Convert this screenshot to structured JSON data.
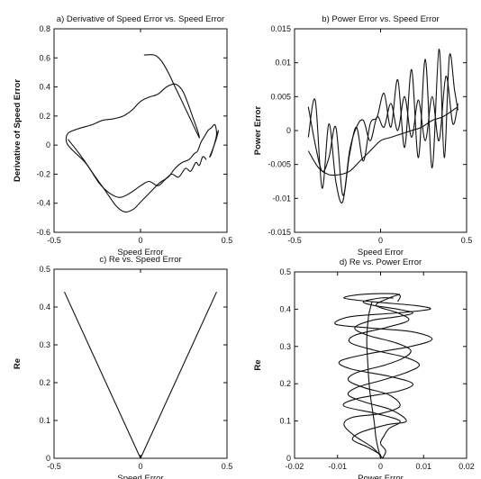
{
  "chart_data": [
    {
      "type": "line",
      "title": "a) Derivative of Speed Error vs. Speed Error",
      "xlabel": "Speed Error",
      "ylabel": "Derivative of Speed Error",
      "xlim": [
        -0.5,
        0.5
      ],
      "ylim": [
        -0.6,
        0.8
      ],
      "xticks": [
        "-0.5",
        "0",
        "0.5"
      ],
      "yticks": [
        "-0.6",
        "-0.4",
        "-0.2",
        "0",
        "0.2",
        "0.4",
        "0.6",
        "0.8"
      ],
      "grid": false,
      "series": [
        {
          "x": [
            0.02,
            0.08,
            0.12,
            0.16,
            0.2,
            0.24,
            0.28,
            0.32,
            0.34,
            0.33,
            0.3,
            0.27,
            0.24,
            0.2,
            0.15,
            0.1,
            0.05,
            0.0,
            -0.05,
            -0.1,
            -0.16,
            -0.22,
            -0.28,
            -0.34,
            -0.39,
            -0.42,
            -0.43,
            -0.42,
            -0.38,
            -0.32,
            -0.26,
            -0.2,
            -0.14,
            -0.09,
            -0.04,
            0.01,
            0.06,
            0.11,
            0.16,
            0.2,
            0.24,
            0.28,
            0.31,
            0.33,
            0.35,
            0.37,
            0.39,
            0.41,
            0.43,
            0.44,
            0.43,
            0.41,
            0.4,
            0.42,
            0.44,
            0.45,
            0.44,
            0.42
          ],
          "y": [
            0.62,
            0.62,
            0.58,
            0.5,
            0.4,
            0.3,
            0.2,
            0.1,
            0.05,
            0.1,
            0.2,
            0.3,
            0.38,
            0.42,
            0.4,
            0.35,
            0.33,
            0.3,
            0.24,
            0.2,
            0.18,
            0.17,
            0.14,
            0.12,
            0.1,
            0.08,
            0.04,
            0.0,
            -0.05,
            -0.12,
            -0.22,
            -0.32,
            -0.42,
            -0.46,
            -0.44,
            -0.38,
            -0.32,
            -0.26,
            -0.22,
            -0.16,
            -0.12,
            -0.1,
            -0.06,
            -0.04,
            0.02,
            0.06,
            0.1,
            0.12,
            0.14,
            0.08,
            0.02,
            -0.06,
            -0.08,
            -0.02,
            0.06,
            0.1,
            0.05,
            -0.02
          ]
        },
        {
          "x": [
            -0.42,
            -0.36,
            -0.3,
            -0.24,
            -0.18,
            -0.12,
            -0.06,
            0.0,
            0.05,
            0.1,
            0.14,
            0.18,
            0.22,
            0.26,
            0.29,
            0.32,
            0.34,
            0.36,
            0.38
          ],
          "y": [
            0.04,
            -0.05,
            -0.15,
            -0.26,
            -0.33,
            -0.36,
            -0.33,
            -0.28,
            -0.25,
            -0.28,
            -0.24,
            -0.2,
            -0.22,
            -0.16,
            -0.18,
            -0.12,
            -0.14,
            -0.08,
            -0.1
          ]
        }
      ]
    },
    {
      "type": "line",
      "title": "b) Power Error vs. Speed Error",
      "xlabel": "Speed Error",
      "ylabel": "Power Error",
      "xlim": [
        -0.5,
        0.5
      ],
      "ylim": [
        -0.015,
        0.015
      ],
      "xticks": [
        "-0.5",
        "0",
        "0.5"
      ],
      "yticks": [
        "-0.015",
        "-0.01",
        "-0.005",
        "0",
        "0.005",
        "0.01",
        "0.015"
      ],
      "grid": false,
      "series": [
        {
          "x": [
            -0.42,
            -0.36,
            -0.3,
            -0.24,
            -0.18,
            -0.12,
            -0.06,
            0.0,
            0.06,
            0.12,
            0.18,
            0.24,
            0.3,
            0.36,
            0.42,
            0.45
          ],
          "y": [
            -0.003,
            -0.0055,
            -0.0065,
            -0.0065,
            -0.006,
            -0.0045,
            -0.003,
            -0.0015,
            -0.001,
            -0.0005,
            0.0,
            0.0005,
            0.0015,
            0.002,
            0.003,
            0.0035
          ]
        },
        {
          "x": [
            -0.42,
            -0.38,
            -0.34,
            -0.3,
            -0.26,
            -0.22,
            -0.18,
            -0.14,
            -0.1,
            -0.06,
            -0.02,
            0.02,
            0.06,
            0.1,
            0.14,
            0.18,
            0.22,
            0.26,
            0.3,
            0.34,
            0.37,
            0.4,
            0.43,
            0.45
          ],
          "y": [
            0.0035,
            -0.002,
            -0.006,
            -0.004,
            0.0005,
            -0.0095,
            -0.0035,
            0.0005,
            -0.0045,
            0.001,
            0.002,
            0.0055,
            0.0005,
            0.0075,
            -0.0025,
            0.009,
            -0.004,
            0.0105,
            -0.0055,
            0.012,
            -0.004,
            0.011,
            0.006,
            0.003
          ]
        },
        {
          "x": [
            -0.42,
            -0.38,
            -0.34,
            -0.3,
            -0.26,
            -0.22,
            -0.18,
            -0.14,
            -0.1,
            -0.06,
            -0.02,
            0.02,
            0.06,
            0.1,
            0.14,
            0.18,
            0.22,
            0.26,
            0.3,
            0.34,
            0.38,
            0.42,
            0.45
          ],
          "y": [
            -0.001,
            0.0045,
            -0.0085,
            0.001,
            -0.0075,
            -0.0105,
            -0.003,
            0.0005,
            0.0015,
            -0.0015,
            0.002,
            0.0005,
            0.004,
            0.0,
            0.005,
            -0.001,
            0.0045,
            -0.0015,
            0.005,
            -0.0015,
            0.008,
            0.001,
            0.004
          ]
        }
      ]
    },
    {
      "type": "line",
      "title": "c) Re vs. Speed Error",
      "xlabel": "Speed Error",
      "ylabel": "Re",
      "xlim": [
        -0.5,
        0.5
      ],
      "ylim": [
        0,
        0.5
      ],
      "xticks": [
        "-0.5",
        "0",
        "0.5"
      ],
      "yticks": [
        "0",
        "0.1",
        "0.2",
        "0.3",
        "0.4",
        "0.5"
      ],
      "grid": false,
      "series": [
        {
          "x": [
            -0.44,
            0.0,
            0.44
          ],
          "y": [
            0.44,
            0.0,
            0.44
          ]
        }
      ]
    },
    {
      "type": "line",
      "title": "d) Re vs. Power Error",
      "xlabel": "Power Error",
      "ylabel": "Re",
      "xlim": [
        -0.02,
        0.02
      ],
      "ylim": [
        0,
        0.5
      ],
      "xticks": [
        "-0.02",
        "-0.01",
        "0",
        "0.01",
        "0.02"
      ],
      "yticks": [
        "0",
        "0.1",
        "0.2",
        "0.3",
        "0.4",
        "0.5"
      ],
      "grid": false,
      "series": [
        {
          "x": [
            0.0005,
            0.0012,
            0.0,
            0.0008,
            0.002,
            0.0045,
            -0.001,
            -0.0085,
            -0.0055,
            0.004,
            0.0075,
            0.002,
            -0.007,
            -0.0095,
            -0.003,
            0.007,
            0.012,
            0.007,
            -0.003,
            -0.0105,
            -0.007,
            0.004,
            0.0115,
            0.008,
            -0.002,
            -0.0085,
            -0.004,
            0.004,
            0.004
          ],
          "y": [
            0.0,
            0.02,
            0.04,
            0.06,
            0.08,
            0.1,
            0.12,
            0.14,
            0.16,
            0.18,
            0.2,
            0.22,
            0.24,
            0.26,
            0.28,
            0.3,
            0.32,
            0.34,
            0.35,
            0.36,
            0.38,
            0.39,
            0.4,
            0.41,
            0.42,
            0.43,
            0.44,
            0.44,
            0.42
          ]
        },
        {
          "x": [
            0.0005,
            -0.002,
            -0.006,
            -0.0085,
            -0.0065,
            0.0,
            0.0045,
            0.002,
            -0.004,
            -0.0075,
            -0.0055,
            0.001,
            0.0055,
            0.007,
            0.0035,
            -0.003,
            -0.006,
            -0.002,
            0.004,
            0.0075,
            0.004,
            -0.0015,
            -0.004,
            0.0,
            0.003
          ],
          "y": [
            0.0,
            0.03,
            0.06,
            0.09,
            0.11,
            0.12,
            0.14,
            0.17,
            0.19,
            0.21,
            0.23,
            0.25,
            0.27,
            0.29,
            0.31,
            0.33,
            0.35,
            0.37,
            0.38,
            0.39,
            0.4,
            0.41,
            0.42,
            0.43,
            0.43
          ]
        },
        {
          "x": [
            0.0,
            -0.003,
            -0.0065,
            -0.0045,
            0.0015,
            0.006,
            0.0025,
            -0.0035,
            -0.0075,
            -0.0055,
            0.0005,
            0.006,
            0.009,
            0.006,
            -0.0015,
            -0.007,
            -0.006,
            0.001,
            0.0065,
            0.004,
            -0.001,
            0.002,
            0.0045
          ],
          "y": [
            0.01,
            0.03,
            0.05,
            0.07,
            0.09,
            0.1,
            0.13,
            0.15,
            0.17,
            0.19,
            0.21,
            0.23,
            0.25,
            0.27,
            0.29,
            0.31,
            0.33,
            0.35,
            0.37,
            0.39,
            0.41,
            0.43,
            0.44
          ]
        },
        {
          "x": [
            0.0,
            -0.001,
            -0.0015,
            -0.0025,
            -0.003,
            -0.0032,
            -0.0028,
            -0.002
          ],
          "y": [
            0.0,
            0.05,
            0.1,
            0.18,
            0.26,
            0.32,
            0.38,
            0.42
          ]
        }
      ]
    }
  ]
}
